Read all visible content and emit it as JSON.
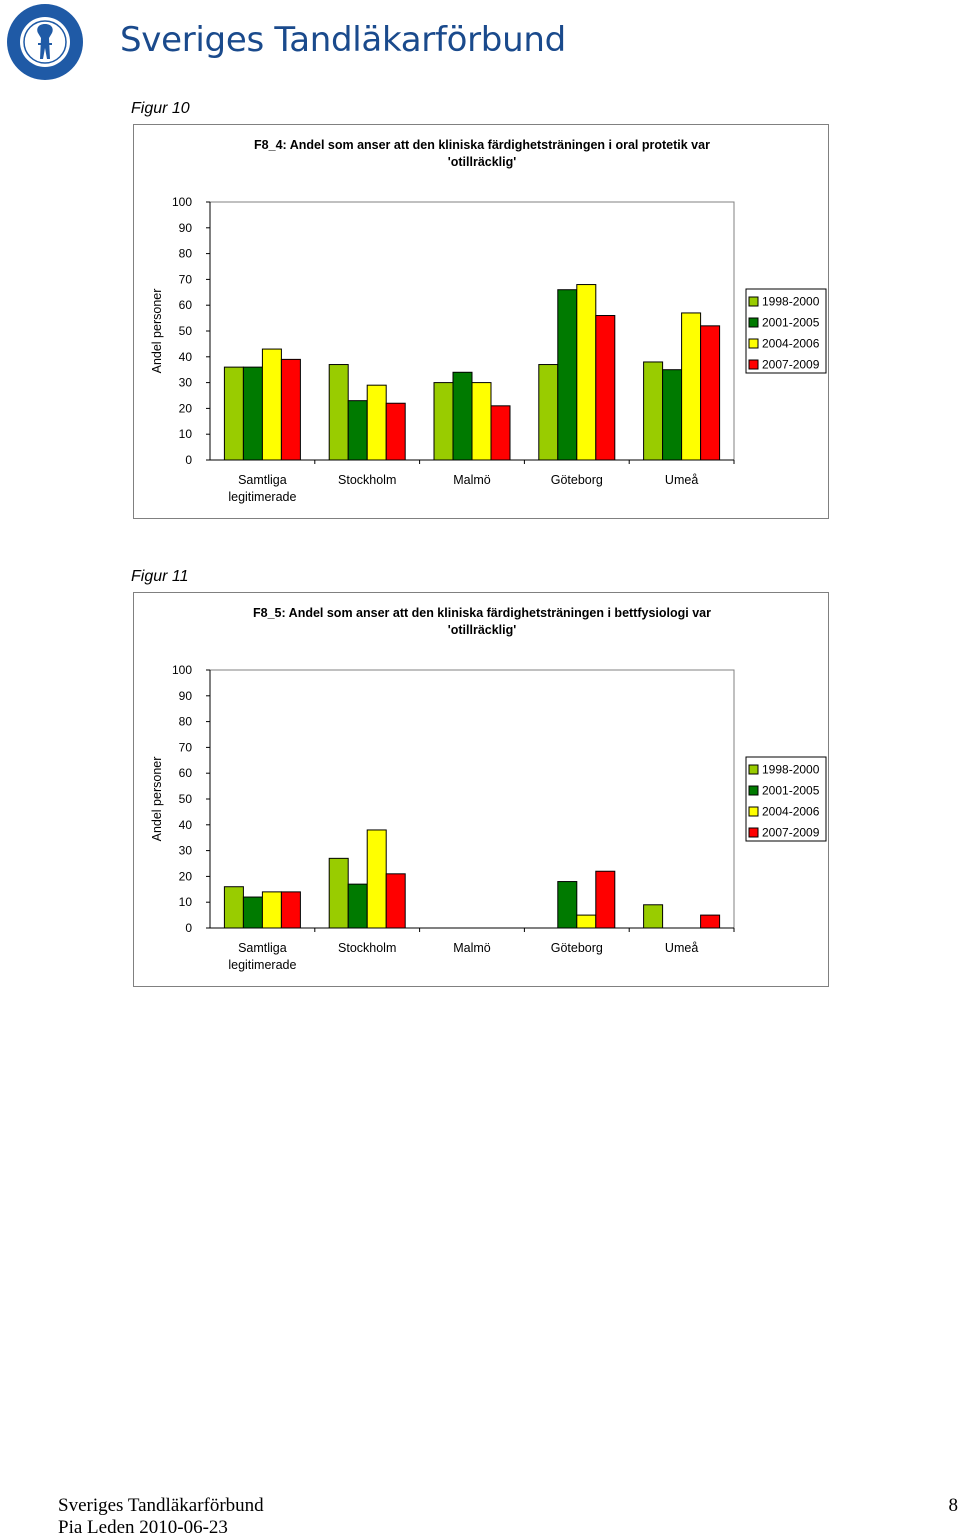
{
  "header": {
    "org_name": "Sveriges Tandläkarförbund",
    "logo_text": "SVERIGES TANDLÄKARFÖRBUND"
  },
  "figures": [
    {
      "caption": "Figur 10"
    },
    {
      "caption": "Figur 11"
    }
  ],
  "colors": {
    "series": [
      "#99cc00",
      "#007a00",
      "#ffff00",
      "#ff0000"
    ],
    "logo_blue": "#1f5aa6"
  },
  "chart_data": [
    {
      "type": "bar",
      "title_lines": [
        "F8_4: Andel som anser att den kliniska färdighetsträningen i oral protetik var",
        "'otillräcklig'"
      ],
      "ylabel": "Andel personer",
      "xlabel": "",
      "ylim": [
        0,
        100
      ],
      "yticks": [
        "0",
        "10",
        "20",
        "30",
        "40",
        "50",
        "60",
        "70",
        "80",
        "90",
        "100"
      ],
      "categories": [
        "Samtliga legitimerade",
        "Stockholm",
        "Malmö",
        "Göteborg",
        "Umeå"
      ],
      "category_lines": [
        [
          "Samtliga",
          "legitimerade"
        ],
        [
          "Stockholm"
        ],
        [
          "Malmö"
        ],
        [
          "Göteborg"
        ],
        [
          "Umeå"
        ]
      ],
      "series": [
        {
          "name": "1998-2000",
          "values": [
            36,
            37,
            30,
            37,
            38
          ]
        },
        {
          "name": "2001-2005",
          "values": [
            36,
            23,
            34,
            66,
            35
          ]
        },
        {
          "name": "2004-2006",
          "values": [
            43,
            29,
            30,
            68,
            57
          ]
        },
        {
          "name": "2007-2009",
          "values": [
            39,
            22,
            21,
            56,
            52
          ]
        }
      ],
      "legend_position": "right",
      "grid": false
    },
    {
      "type": "bar",
      "title_lines": [
        "F8_5: Andel som anser att den kliniska färdighetsträningen i bettfysiologi var",
        "'otillräcklig'"
      ],
      "ylabel": "Andel personer",
      "xlabel": "",
      "ylim": [
        0,
        100
      ],
      "yticks": [
        "0",
        "10",
        "20",
        "30",
        "40",
        "50",
        "60",
        "70",
        "80",
        "90",
        "100"
      ],
      "categories": [
        "Samtliga legitimerade",
        "Stockholm",
        "Malmö",
        "Göteborg",
        "Umeå"
      ],
      "category_lines": [
        [
          "Samtliga",
          "legitimerade"
        ],
        [
          "Stockholm"
        ],
        [
          "Malmö"
        ],
        [
          "Göteborg"
        ],
        [
          "Umeå"
        ]
      ],
      "series": [
        {
          "name": "1998-2000",
          "values": [
            16,
            27,
            null,
            null,
            9
          ]
        },
        {
          "name": "2001-2005",
          "values": [
            12,
            17,
            null,
            18,
            null
          ]
        },
        {
          "name": "2004-2006",
          "values": [
            14,
            38,
            null,
            5,
            null
          ]
        },
        {
          "name": "2007-2009",
          "values": [
            14,
            21,
            null,
            22,
            5
          ]
        }
      ],
      "legend_position": "right",
      "grid": false
    }
  ],
  "footer": {
    "line1": "Sveriges Tandläkarförbund",
    "line2": "Pia Leden 2010-06-23",
    "page_number": "8"
  }
}
